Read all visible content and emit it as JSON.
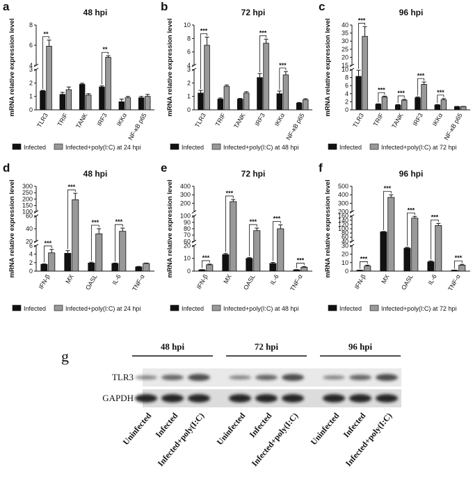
{
  "chart_data": [
    {
      "type": "bar",
      "panel": "a",
      "title": "48 hpi",
      "y_label": "mRNA relative expression level",
      "categories": [
        "TLR3",
        "TRIF",
        "TANK",
        "IRF3",
        "IKKα",
        "NF-κB p65"
      ],
      "series": [
        {
          "name": "Infected",
          "color": "#111111",
          "values": [
            1.4,
            1.15,
            1.9,
            1.7,
            0.6,
            0.9
          ],
          "errors": [
            0.05,
            0.15,
            0.08,
            0.08,
            0.2,
            0.1
          ]
        },
        {
          "name": "Infected+poly(I:C) at 24 hpi",
          "color": "#999999",
          "values": [
            5.9,
            1.5,
            1.1,
            4.8,
            0.9,
            1.0
          ],
          "errors": [
            0.6,
            0.2,
            0.1,
            0.15,
            0.1,
            0.15
          ]
        }
      ],
      "y_segments": [
        {
          "ylim": [
            0,
            3
          ],
          "yticks": [
            0,
            1,
            2,
            3
          ]
        },
        {
          "ylim": [
            4,
            8
          ],
          "yticks": [
            4,
            6,
            8
          ]
        }
      ],
      "annotations": [
        "**",
        null,
        null,
        "**",
        null,
        null
      ]
    },
    {
      "type": "bar",
      "panel": "b",
      "title": "72 hpi",
      "y_label": "mRNA relative expression level",
      "categories": [
        "TLR3",
        "TRIF",
        "TANK",
        "IRF3",
        "IKKα",
        "NF-κB p65"
      ],
      "series": [
        {
          "name": "Infected",
          "color": "#111111",
          "values": [
            1.25,
            0.8,
            0.8,
            2.4,
            1.2,
            0.5
          ],
          "errors": [
            0.2,
            0.08,
            0.05,
            0.3,
            0.2,
            0.05
          ]
        },
        {
          "name": "Infected+poly(I:C) at 48 hpi",
          "color": "#999999",
          "values": [
            7.0,
            1.75,
            1.25,
            7.3,
            2.6,
            0.75
          ],
          "errors": [
            1.2,
            0.1,
            0.1,
            0.6,
            0.25,
            0.08
          ]
        }
      ],
      "y_segments": [
        {
          "ylim": [
            0,
            3
          ],
          "yticks": [
            0,
            1,
            2,
            3
          ]
        },
        {
          "ylim": [
            4,
            10
          ],
          "yticks": [
            4,
            6,
            8,
            10
          ]
        }
      ],
      "annotations": [
        "***",
        null,
        null,
        "***",
        "***",
        null
      ]
    },
    {
      "type": "bar",
      "panel": "c",
      "title": "96 hpi",
      "y_label": "mRNA relative expression level",
      "categories": [
        "TLR3",
        "TRIF",
        "TANK",
        "IRF3",
        "IKKα",
        "NF-κB p65"
      ],
      "series": [
        {
          "name": "Infected",
          "color": "#111111",
          "values": [
            8.3,
            1.4,
            1.2,
            3.0,
            1.2,
            0.8
          ],
          "errors": [
            1.5,
            0.1,
            0.1,
            0.2,
            0.1,
            0.05
          ]
        },
        {
          "name": "Infected+poly(I:C) at 72 hpi",
          "color": "#999999",
          "values": [
            33,
            3.2,
            2.4,
            6.3,
            2.5,
            0.8
          ],
          "errors": [
            6,
            0.2,
            0.2,
            0.6,
            0.3,
            0.05
          ]
        }
      ],
      "y_segments": [
        {
          "ylim": [
            0,
            10
          ],
          "yticks": [
            0,
            2,
            4,
            6,
            8,
            10
          ]
        },
        {
          "ylim": [
            15,
            40
          ],
          "yticks": [
            15,
            20,
            25,
            30,
            35,
            40
          ]
        }
      ],
      "annotations": [
        "***",
        "***",
        "***",
        "***",
        "***",
        null
      ]
    },
    {
      "type": "bar",
      "panel": "d",
      "title": "48 hpi",
      "y_label": "mRNA relative expression level",
      "categories": [
        "IFN-β",
        "MX",
        "OASL",
        "IL-6",
        "TNF-α"
      ],
      "series": [
        {
          "name": "Infected",
          "color": "#111111",
          "values": [
            1.6,
            4.2,
            1.9,
            1.8,
            1.0
          ],
          "errors": [
            0.1,
            0.6,
            0.2,
            0.1,
            0.1
          ]
        },
        {
          "name": "Infected+poly(I:C) at 24 hpi",
          "color": "#999999",
          "values": [
            4.3,
            195,
            32,
            36,
            1.8
          ],
          "errors": [
            0.8,
            50,
            8,
            5,
            0.1
          ]
        }
      ],
      "y_segments": [
        {
          "ylim": [
            0,
            6
          ],
          "yticks": [
            0,
            2,
            4,
            6
          ]
        },
        {
          "ylim": [
            20,
            60
          ],
          "yticks": [
            20,
            40,
            60
          ]
        },
        {
          "ylim": [
            100,
            300
          ],
          "yticks": [
            100,
            150,
            200,
            250,
            300
          ]
        }
      ],
      "annotations": [
        "***",
        "***",
        "***",
        "***",
        null
      ]
    },
    {
      "type": "bar",
      "panel": "e",
      "title": "72 hpi",
      "y_label": "mRNA relative expression level",
      "categories": [
        "IFN-β",
        "MX",
        "OASL",
        "IL-6",
        "TNF-α"
      ],
      "series": [
        {
          "name": "Infected",
          "color": "#111111",
          "values": [
            1,
            13,
            10,
            6,
            1
          ],
          "errors": [
            0.2,
            0.8,
            0.6,
            0.8,
            0.2
          ]
        },
        {
          "name": "Infected+poly(I:C) at 48 hpi",
          "color": "#999999",
          "values": [
            5,
            220,
            77,
            80,
            3
          ],
          "errors": [
            0.5,
            25,
            4,
            6,
            0.5
          ]
        }
      ],
      "y_segments": [
        {
          "ylim": [
            0,
            20
          ],
          "yticks": [
            0,
            10,
            20
          ]
        },
        {
          "ylim": [
            60,
            100
          ],
          "yticks": [
            60,
            70,
            80,
            90,
            100
          ]
        },
        {
          "ylim": [
            100,
            400
          ],
          "yticks": [
            200,
            300,
            400
          ]
        }
      ],
      "annotations": [
        "***",
        "***",
        "***",
        "***",
        "***"
      ]
    },
    {
      "type": "bar",
      "panel": "f",
      "title": "96 hpi",
      "y_label": "mRNA relative expression level",
      "categories": [
        "IFN-β",
        "MX",
        "OASL",
        "IL-6",
        "TNF-α"
      ],
      "series": [
        {
          "name": "Infected",
          "color": "#111111",
          "values": [
            1,
            85,
            27,
            11,
            1
          ],
          "errors": [
            0.2,
            2,
            1,
            1,
            0.2
          ]
        },
        {
          "name": "Infected+poly(I:C) at 72 hpi",
          "color": "#999999",
          "values": [
            6,
            370,
            150,
            115,
            7
          ],
          "errors": [
            1,
            30,
            8,
            10,
            1
          ]
        }
      ],
      "y_segments": [
        {
          "ylim": [
            0,
            30
          ],
          "yticks": [
            0,
            10,
            20,
            30
          ]
        },
        {
          "ylim": [
            40,
            160
          ],
          "yticks": [
            40,
            60,
            80,
            100,
            120,
            140,
            160
          ]
        },
        {
          "ylim": [
            200,
            500
          ],
          "yticks": [
            200,
            300,
            400,
            500
          ]
        }
      ],
      "annotations": [
        "***",
        "***",
        "***",
        "***",
        "***"
      ]
    }
  ],
  "blot": {
    "panel": "g",
    "groups": [
      "48 hpi",
      "72 hpi",
      "96 hpi"
    ],
    "rows": [
      "TLR3",
      "GAPDH"
    ],
    "lanes": [
      "Uninfected",
      "Infected",
      "Infected+poly(I:C)"
    ]
  }
}
